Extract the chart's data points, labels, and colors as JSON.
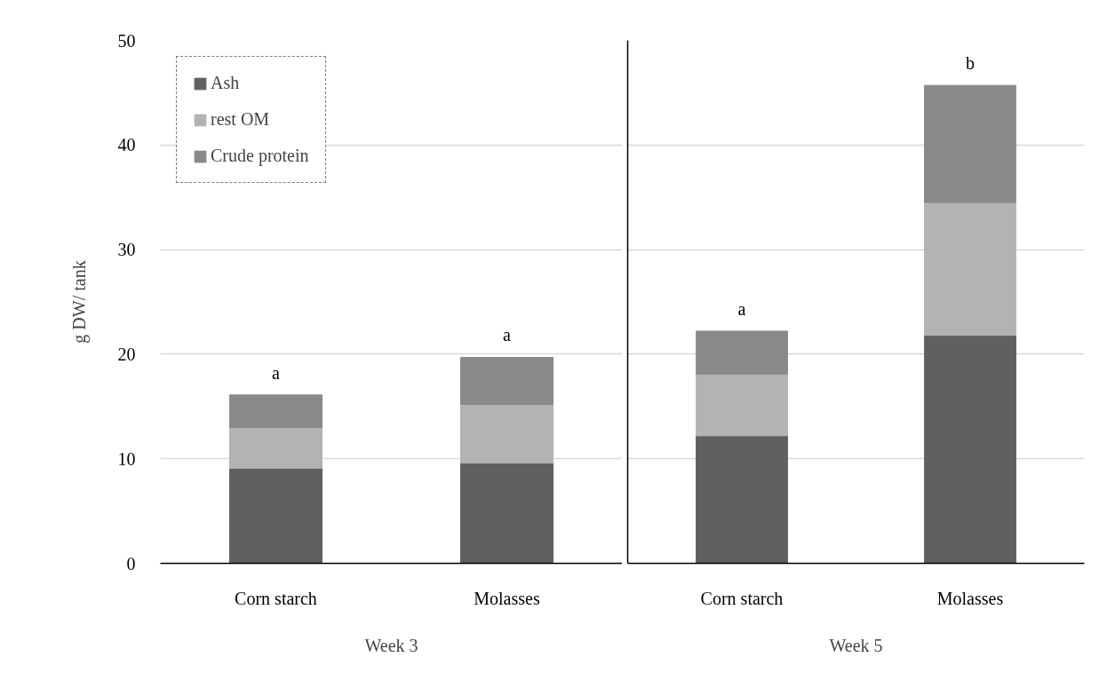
{
  "chart_data": [
    {
      "type": "bar",
      "stacked": true,
      "ylabel": "g DW/ tank",
      "xlabel": "Week 3",
      "categories": [
        "Corn starch",
        "Molasses"
      ],
      "series": [
        {
          "name": "Ash",
          "color": "#606060",
          "values": [
            9.1,
            9.6
          ]
        },
        {
          "name": "rest OM",
          "color": "#b3b3b3",
          "values": [
            3.9,
            5.6
          ]
        },
        {
          "name": "Crude protein",
          "color": "#898989",
          "values": [
            3.1,
            4.5
          ]
        }
      ],
      "ylim": [
        0,
        50
      ],
      "yticks": [
        0,
        10,
        20,
        30,
        40,
        50
      ],
      "grid": "y",
      "legend": "top left",
      "annotations": [
        "a",
        "a"
      ]
    },
    {
      "type": "bar",
      "stacked": true,
      "xlabel": "Week 5",
      "categories": [
        "Corn starch",
        "Molasses"
      ],
      "series": [
        {
          "color": "#606060",
          "values": [
            12.2,
            21.8
          ]
        },
        {
          "color": "#b3b3b3",
          "values": [
            5.9,
            12.7
          ]
        },
        {
          "color": "#898989",
          "values": [
            4.1,
            11.2
          ]
        }
      ],
      "ylim": [
        0,
        50
      ],
      "yticks": [
        0,
        10,
        20,
        30,
        40,
        50
      ],
      "grid": "y",
      "tick_labels": "x",
      "annotations": [
        "a",
        "b"
      ]
    }
  ]
}
